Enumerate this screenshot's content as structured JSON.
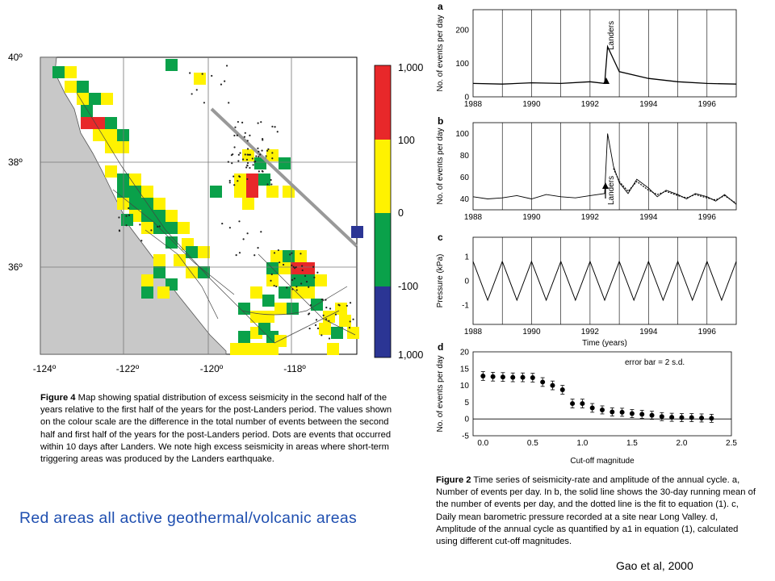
{
  "figure4": {
    "lat_labels": [
      "40º",
      "38º",
      "36º"
    ],
    "lon_labels": [
      "-124º",
      "-122º",
      "-120º",
      "-118º"
    ],
    "colorbar_labels": [
      "1,000",
      "100",
      "0",
      "-100",
      "1,000"
    ],
    "colorbar_colors": [
      "#e8282a",
      "#fff200",
      "#0aa14a",
      "#2b3594"
    ],
    "ocean_color": "#c8c8c8",
    "caption_lead": "Figure 4",
    "caption_text": " Map showing spatial distribution of excess seismicity in the second half of the years relative to the first half of the years for the post-Landers period. The values shown on the colour scale are the difference in the total number of events between the second half and first half of the years for the post-Landers period. Dots are events that occurred within 10 days after Landers. We note high excess seismicity in areas where short-term triggering areas was produced by the Landers earthquake."
  },
  "figure2": {
    "caption_lead": "Figure 2",
    "caption_text": " Time series of seismicity-rate and amplitude of the annual cycle. a, Number of events per day. In b, the solid line shows the 30-day running mean of the number of events per day, and the dotted line is the fit to equation (1). c, Daily mean barometric pressure recorded at a site near Long Valley. d, Amplitude of the annual cycle as quantified by a1 in equation (1), calculated using different cut-off magnitudes."
  },
  "note": "Red areas all active geothermal/volcanic areas",
  "credit": "Gao et al, 2000",
  "chart_data": [
    {
      "panel": "a",
      "type": "line",
      "ylabel": "No. of events per day",
      "xticks": [
        1988,
        1990,
        1992,
        1994,
        1996
      ],
      "yticks": [
        0,
        100,
        200
      ],
      "ylim": [
        0,
        260
      ],
      "xlim": [
        1988,
        1997
      ],
      "annotation": "Landers",
      "series": [
        {
          "x": [
            1988.0,
            1989.0,
            1990.0,
            1991.0,
            1992.0,
            1992.5,
            1992.6,
            1993.0,
            1994.0,
            1995.0,
            1996.0,
            1997.0
          ],
          "values": [
            40,
            38,
            42,
            40,
            45,
            40,
            150,
            75,
            55,
            45,
            40,
            38
          ]
        }
      ]
    },
    {
      "panel": "b",
      "type": "line",
      "ylabel": "No. of events per day",
      "xticks": [
        1988,
        1990,
        1992,
        1994,
        1996
      ],
      "yticks": [
        40,
        60,
        80,
        100
      ],
      "ylim": [
        30,
        110
      ],
      "xlim": [
        1988,
        1997
      ],
      "annotation": "Landers",
      "series": [
        {
          "x": [
            1988.0,
            1988.5,
            1989.0,
            1989.5,
            1990.0,
            1990.5,
            1991.0,
            1991.5,
            1992.0,
            1992.5,
            1992.6,
            1992.8,
            1993.0,
            1993.3,
            1993.6,
            1994.0,
            1994.3,
            1994.6,
            1995.0,
            1995.3,
            1995.6,
            1996.0,
            1996.3,
            1996.6,
            1997.0
          ],
          "values": [
            42,
            40,
            41,
            43,
            40,
            44,
            42,
            41,
            43,
            45,
            100,
            70,
            55,
            45,
            58,
            50,
            42,
            48,
            44,
            40,
            45,
            42,
            38,
            44,
            35
          ]
        },
        {
          "x": [
            1992.8,
            1993.0,
            1993.3,
            1993.6,
            1994.0,
            1994.3,
            1994.6,
            1995.0,
            1995.3,
            1995.6,
            1996.0,
            1996.3,
            1996.6,
            1997.0
          ],
          "values": [
            68,
            56,
            47,
            56,
            48,
            44,
            47,
            43,
            41,
            44,
            41,
            39,
            43,
            36
          ]
        }
      ]
    },
    {
      "panel": "c",
      "type": "line",
      "ylabel": "Pressure (kPa)",
      "xlabel": "Time (years)",
      "xticks": [
        1988,
        1990,
        1992,
        1994,
        1996
      ],
      "yticks": [
        -1,
        0,
        1
      ],
      "ylim": [
        -1.8,
        1.8
      ],
      "xlim": [
        1988,
        1997
      ],
      "series": [
        {
          "x": [
            1988.0,
            1988.5,
            1989.0,
            1989.5,
            1990.0,
            1990.5,
            1991.0,
            1991.5,
            1992.0,
            1992.5,
            1993.0,
            1993.5,
            1994.0,
            1994.5,
            1995.0,
            1995.5,
            1996.0,
            1996.5,
            1997.0
          ],
          "values": [
            0.8,
            -0.8,
            0.8,
            -0.8,
            0.8,
            -0.8,
            0.8,
            -0.8,
            0.8,
            -0.8,
            0.8,
            -0.8,
            0.8,
            -0.8,
            0.8,
            -0.8,
            0.8,
            -0.8,
            0.8
          ]
        }
      ]
    },
    {
      "panel": "d",
      "type": "scatter",
      "ylabel": "No. of events per day",
      "xlabel": "Cut-off magnitude",
      "annotation": "error bar = 2 s.d.",
      "xticks": [
        "0.0",
        "0.5",
        "1.0",
        "1.5",
        "2.0",
        "2.5"
      ],
      "yticks": [
        -5,
        0,
        5,
        10,
        15,
        20
      ],
      "xlim": [
        -0.1,
        2.5
      ],
      "ylim": [
        -5,
        20
      ],
      "series": [
        {
          "x": [
            0.0,
            0.1,
            0.2,
            0.3,
            0.4,
            0.5,
            0.6,
            0.7,
            0.8,
            0.9,
            1.0,
            1.1,
            1.2,
            1.3,
            1.4,
            1.5,
            1.6,
            1.7,
            1.8,
            1.9,
            2.0,
            2.1,
            2.2,
            2.3
          ],
          "values": [
            12.8,
            12.6,
            12.5,
            12.4,
            12.4,
            12.3,
            11.0,
            10.0,
            8.7,
            4.6,
            4.6,
            3.3,
            2.7,
            2.1,
            2.0,
            1.6,
            1.4,
            1.1,
            0.7,
            0.5,
            0.4,
            0.4,
            0.3,
            0.2
          ],
          "error": [
            1.3,
            1.3,
            1.3,
            1.3,
            1.3,
            1.3,
            1.3,
            1.3,
            1.3,
            1.3,
            1.3,
            1.3,
            1.2,
            1.2,
            1.2,
            1.2,
            1.2,
            1.2,
            1.2,
            1.2,
            1.2,
            1.2,
            1.2,
            1.2
          ]
        }
      ]
    }
  ]
}
